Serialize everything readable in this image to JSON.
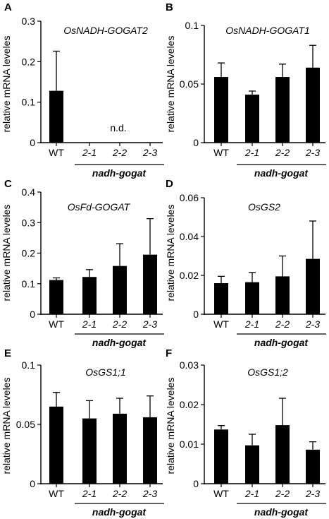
{
  "chart_data": [
    {
      "panel": "A",
      "type": "bar",
      "title": "OsNADH-GOGAT2",
      "ylabel": "relative mRNA leveles",
      "categories": [
        "WT",
        "2-1",
        "2-2",
        "2-3"
      ],
      "group_label": "nadh-gogat",
      "values": [
        0.128,
        null,
        null,
        null
      ],
      "errors": [
        0.098,
        null,
        null,
        null
      ],
      "annotation": "n.d.",
      "ylim": [
        0,
        0.3
      ],
      "yticks": [
        0,
        0.1,
        0.2,
        0.3
      ],
      "ytick_labels": [
        "0",
        "0.1",
        "0.2",
        "0.3"
      ]
    },
    {
      "panel": "B",
      "type": "bar",
      "title": "OsNADH-GOGAT1",
      "ylabel": "relative mRNA leveles",
      "categories": [
        "WT",
        "2-1",
        "2-2",
        "2-3"
      ],
      "group_label": "nadh-gogat",
      "values": [
        0.056,
        0.041,
        0.056,
        0.064
      ],
      "errors": [
        0.012,
        0.003,
        0.011,
        0.019
      ],
      "ylim": [
        0,
        0.1
      ],
      "yticks": [
        0,
        0.05,
        0.1
      ],
      "ytick_labels": [
        "0",
        "0.05",
        "0.1"
      ]
    },
    {
      "panel": "C",
      "type": "bar",
      "title": "OsFd-GOGAT",
      "ylabel": "relative mRNA leveles",
      "categories": [
        "WT",
        "2-1",
        "2-2",
        "2-3"
      ],
      "group_label": "nadh-gogat",
      "values": [
        0.112,
        0.122,
        0.158,
        0.195
      ],
      "errors": [
        0.007,
        0.024,
        0.073,
        0.118
      ],
      "ylim": [
        0,
        0.4
      ],
      "yticks": [
        0,
        0.1,
        0.2,
        0.3,
        0.4
      ],
      "ytick_labels": [
        "0",
        "0.1",
        "0.2",
        "0.3",
        "0.4"
      ]
    },
    {
      "panel": "D",
      "type": "bar",
      "title": "OsGS2",
      "ylabel": "relative mRNA leveles",
      "categories": [
        "WT",
        "2-1",
        "2-2",
        "2-3"
      ],
      "group_label": "nadh-gogat",
      "values": [
        0.016,
        0.0165,
        0.0195,
        0.0285
      ],
      "errors": [
        0.0035,
        0.005,
        0.0105,
        0.0195
      ],
      "ylim": [
        0,
        0.06
      ],
      "yticks": [
        0,
        0.02,
        0.04,
        0.06
      ],
      "ytick_labels": [
        "0",
        "0.02",
        "0.04",
        "0.06"
      ]
    },
    {
      "panel": "E",
      "type": "bar",
      "title": "OsGS1;1",
      "ylabel": "relative mRNA leveles",
      "categories": [
        "WT",
        "2-1",
        "2-2",
        "2-3"
      ],
      "group_label": "nadh-gogat",
      "values": [
        0.065,
        0.055,
        0.059,
        0.056
      ],
      "errors": [
        0.012,
        0.015,
        0.013,
        0.018
      ],
      "ylim": [
        0,
        0.1
      ],
      "yticks": [
        0,
        0.05,
        0.1
      ],
      "ytick_labels": [
        "0",
        "0.05",
        "0.1"
      ]
    },
    {
      "panel": "F",
      "type": "bar",
      "title": "OsGS1;2",
      "ylabel": "relative mRNA leveles",
      "categories": [
        "WT",
        "2-1",
        "2-2",
        "2-3"
      ],
      "group_label": "nadh-gogat",
      "values": [
        0.0137,
        0.0097,
        0.0148,
        0.0086
      ],
      "errors": [
        0.001,
        0.0028,
        0.0068,
        0.002
      ],
      "ylim": [
        0,
        0.03
      ],
      "yticks": [
        0,
        0.01,
        0.02,
        0.03
      ],
      "ytick_labels": [
        "0",
        "0.01",
        "0.02",
        "0.03"
      ]
    }
  ]
}
